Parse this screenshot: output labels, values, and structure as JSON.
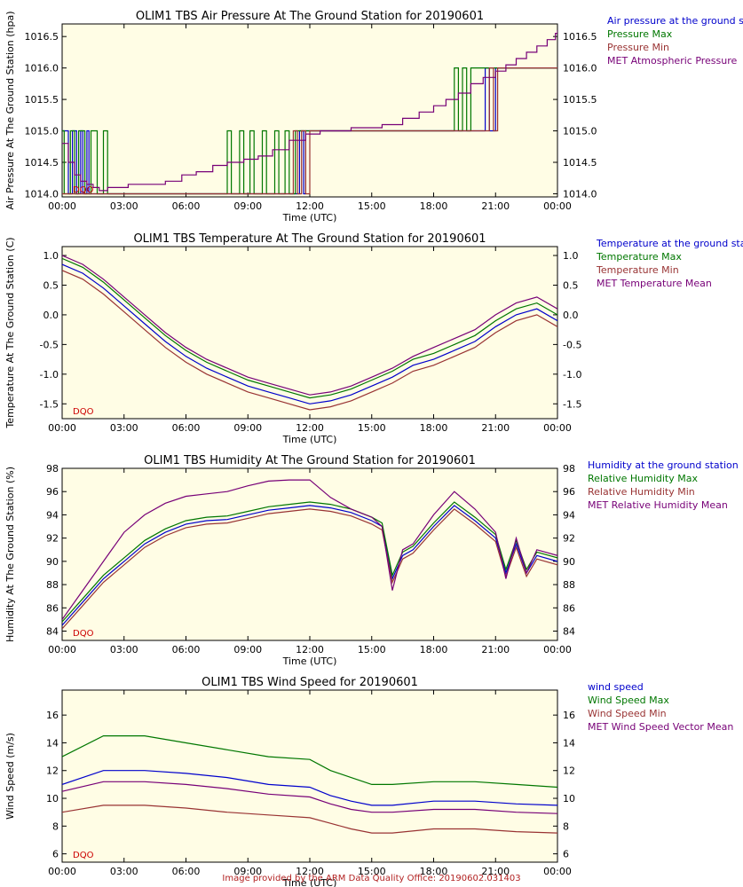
{
  "footer": "Image provided by the ARM Data Quality Office: 20190602.031403",
  "colors": {
    "blue": "#0000cc",
    "green": "#007700",
    "red": "#993333",
    "purple": "#770077",
    "dqo": "#cc0000",
    "bg": "#fffde5"
  },
  "chart_data": [
    {
      "type": "line",
      "title": "OLIM1 TBS Air Pressure At The Ground Station for 20190601",
      "xlabel": "Time (UTC)",
      "ylabel": "Air Pressure At The Ground Station (hpa)",
      "annotation": "DQO",
      "xlim": [
        0,
        24
      ],
      "ylim": [
        1013.95,
        1016.7
      ],
      "xticks": [
        "00:00",
        "03:00",
        "06:00",
        "09:00",
        "12:00",
        "15:00",
        "18:00",
        "21:00",
        "00:00"
      ],
      "yticks": [
        {
          "v": 1014.0,
          "t": "1014.0"
        },
        {
          "v": 1014.5,
          "t": "1014.5"
        },
        {
          "v": 1015.0,
          "t": "1015.0"
        },
        {
          "v": 1015.5,
          "t": "1015.5"
        },
        {
          "v": 1016.0,
          "t": "1016.0"
        },
        {
          "v": 1016.5,
          "t": "1016.5"
        }
      ],
      "series": [
        {
          "name": "Air pressure at the ground sta",
          "color": "#0000cc",
          "step": true,
          "x": [
            0,
            0.3,
            0.5,
            0.7,
            0.9,
            1.0,
            1.2,
            1.3,
            1.5,
            11.5,
            11.7,
            11.8,
            20.2,
            20.5,
            20.7,
            21.0,
            24
          ],
          "y": [
            1015,
            1014,
            1015,
            1014,
            1015,
            1014,
            1015,
            1014,
            1014,
            1015,
            1014,
            1015,
            1015,
            1016,
            1015,
            1016,
            1016
          ]
        },
        {
          "name": "Pressure Max",
          "color": "#007700",
          "step": true,
          "x": [
            0,
            0.1,
            0.4,
            0.6,
            0.8,
            1.1,
            1.4,
            1.7,
            2.0,
            2.2,
            8.0,
            8.2,
            8.6,
            8.8,
            9.1,
            9.3,
            9.7,
            9.9,
            10.3,
            10.5,
            10.8,
            11.0,
            11.3,
            11.6,
            19.0,
            19.2,
            19.4,
            19.6,
            19.8,
            20.0,
            24
          ],
          "y": [
            1015,
            1014,
            1015,
            1014,
            1015,
            1014,
            1015,
            1014,
            1015,
            1014,
            1015,
            1014,
            1015,
            1014,
            1015,
            1014,
            1015,
            1014,
            1015,
            1014,
            1015,
            1014,
            1015,
            1015,
            1016,
            1015,
            1016,
            1015,
            1016,
            1016,
            1016
          ]
        },
        {
          "name": "Pressure Min",
          "color": "#993333",
          "step": true,
          "x": [
            0,
            11.2,
            11.4,
            11.6,
            11.8,
            12.0,
            20.5,
            20.7,
            20.9,
            21.1,
            21.3,
            24
          ],
          "y": [
            1014,
            1015,
            1014,
            1015,
            1014,
            1015,
            1015,
            1016,
            1015,
            1016,
            1016,
            1016
          ]
        },
        {
          "name": "MET Atmospheric Pressure",
          "color": "#770077",
          "step": true,
          "x": [
            0,
            0.3,
            0.6,
            0.9,
            1.2,
            1.5,
            1.8,
            2.2,
            2.7,
            3.2,
            4.0,
            5.0,
            5.8,
            6.5,
            7.3,
            8.0,
            8.8,
            9.5,
            10.2,
            11.0,
            11.8,
            12.5,
            14.0,
            15.5,
            16.5,
            17.3,
            18.0,
            18.6,
            19.2,
            19.8,
            20.4,
            21.0,
            21.5,
            22.0,
            22.5,
            23.0,
            23.5,
            23.9,
            24
          ],
          "y": [
            1014.8,
            1014.5,
            1014.3,
            1014.2,
            1014.15,
            1014.1,
            1014.05,
            1014.1,
            1014.1,
            1014.15,
            1014.15,
            1014.2,
            1014.3,
            1014.35,
            1014.45,
            1014.5,
            1014.55,
            1014.6,
            1014.7,
            1014.85,
            1014.95,
            1015.0,
            1015.05,
            1015.1,
            1015.2,
            1015.3,
            1015.4,
            1015.5,
            1015.6,
            1015.75,
            1015.85,
            1015.95,
            1016.05,
            1016.15,
            1016.25,
            1016.35,
            1016.45,
            1016.55,
            1016.6
          ]
        }
      ]
    },
    {
      "type": "line",
      "title": "OLIM1 TBS Temperature At The Ground Station for 20190601",
      "xlabel": "Time (UTC)",
      "ylabel": "Temperature At The Ground Station (C)",
      "annotation": "DQO",
      "xlim": [
        0,
        24
      ],
      "ylim": [
        -1.75,
        1.15
      ],
      "xticks": [
        "00:00",
        "03:00",
        "06:00",
        "09:00",
        "12:00",
        "15:00",
        "18:00",
        "21:00",
        "00:00"
      ],
      "yticks": [
        {
          "v": -1.5,
          "t": "-1.5"
        },
        {
          "v": -1.0,
          "t": "-1.0"
        },
        {
          "v": -0.5,
          "t": "-0.5"
        },
        {
          "v": 0.0,
          "t": "0.0"
        },
        {
          "v": 0.5,
          "t": "0.5"
        },
        {
          "v": 1.0,
          "t": "1.0"
        }
      ],
      "series": [
        {
          "name": "Temperature at the ground stati",
          "color": "#0000cc",
          "x": [
            0,
            1,
            2,
            3,
            4,
            5,
            6,
            7,
            8,
            9,
            10,
            11,
            12,
            13,
            14,
            15,
            16,
            17,
            18,
            19,
            20,
            21,
            22,
            23,
            24
          ],
          "y": [
            0.85,
            0.7,
            0.45,
            0.15,
            -0.15,
            -0.45,
            -0.7,
            -0.9,
            -1.05,
            -1.2,
            -1.3,
            -1.4,
            -1.5,
            -1.45,
            -1.35,
            -1.2,
            -1.05,
            -0.85,
            -0.75,
            -0.6,
            -0.45,
            -0.2,
            0.0,
            0.1,
            -0.1
          ]
        },
        {
          "name": "Temperature Max",
          "color": "#007700",
          "x": [
            0,
            1,
            2,
            3,
            4,
            5,
            6,
            7,
            8,
            9,
            10,
            11,
            12,
            13,
            14,
            15,
            16,
            17,
            18,
            19,
            20,
            21,
            22,
            23,
            24
          ],
          "y": [
            0.95,
            0.8,
            0.55,
            0.25,
            -0.05,
            -0.35,
            -0.6,
            -0.8,
            -0.95,
            -1.1,
            -1.2,
            -1.3,
            -1.4,
            -1.35,
            -1.25,
            -1.1,
            -0.95,
            -0.75,
            -0.65,
            -0.5,
            -0.35,
            -0.1,
            0.1,
            0.2,
            0.0
          ]
        },
        {
          "name": "Temperature Min",
          "color": "#993333",
          "x": [
            0,
            1,
            2,
            3,
            4,
            5,
            6,
            7,
            8,
            9,
            10,
            11,
            12,
            13,
            14,
            15,
            16,
            17,
            18,
            19,
            20,
            21,
            22,
            23,
            24
          ],
          "y": [
            0.75,
            0.6,
            0.35,
            0.05,
            -0.25,
            -0.55,
            -0.8,
            -1.0,
            -1.15,
            -1.3,
            -1.4,
            -1.5,
            -1.6,
            -1.55,
            -1.45,
            -1.3,
            -1.15,
            -0.95,
            -0.85,
            -0.7,
            -0.55,
            -0.3,
            -0.1,
            0.0,
            -0.2
          ]
        },
        {
          "name": "MET Temperature Mean",
          "color": "#770077",
          "x": [
            0,
            1,
            2,
            3,
            4,
            5,
            6,
            7,
            8,
            9,
            10,
            11,
            12,
            13,
            14,
            15,
            16,
            17,
            18,
            19,
            20,
            21,
            22,
            23,
            24
          ],
          "y": [
            1.0,
            0.85,
            0.6,
            0.3,
            0.0,
            -0.3,
            -0.55,
            -0.75,
            -0.9,
            -1.05,
            -1.15,
            -1.25,
            -1.35,
            -1.3,
            -1.2,
            -1.05,
            -0.9,
            -0.7,
            -0.55,
            -0.4,
            -0.25,
            0.0,
            0.2,
            0.3,
            0.1
          ]
        }
      ]
    },
    {
      "type": "line",
      "title": "OLIM1 TBS Humidity At The Ground Station for 20190601",
      "xlabel": "Time (UTC)",
      "ylabel": "Humidity At The Ground Station (%)",
      "annotation": "DQO",
      "xlim": [
        0,
        24
      ],
      "ylim": [
        83.2,
        98.0
      ],
      "xticks": [
        "00:00",
        "03:00",
        "06:00",
        "09:00",
        "12:00",
        "15:00",
        "18:00",
        "21:00",
        "00:00"
      ],
      "yticks": [
        {
          "v": 84,
          "t": "84"
        },
        {
          "v": 86,
          "t": "86"
        },
        {
          "v": 88,
          "t": "88"
        },
        {
          "v": 90,
          "t": "90"
        },
        {
          "v": 92,
          "t": "92"
        },
        {
          "v": 94,
          "t": "94"
        },
        {
          "v": 96,
          "t": "96"
        },
        {
          "v": 98,
          "t": "98"
        }
      ],
      "series": [
        {
          "name": "Humidity at the ground station",
          "color": "#0000cc",
          "x": [
            0,
            1,
            2,
            3,
            4,
            5,
            6,
            7,
            8,
            9,
            10,
            11,
            12,
            13,
            14,
            15,
            15.5,
            16,
            16.5,
            17,
            18,
            19,
            20,
            21,
            21.5,
            22,
            22.5,
            23,
            24
          ],
          "y": [
            84.5,
            86.5,
            88.5,
            90.0,
            91.5,
            92.5,
            93.2,
            93.5,
            93.6,
            94.0,
            94.4,
            94.6,
            94.8,
            94.6,
            94.2,
            93.5,
            93.0,
            88.5,
            90.5,
            91.0,
            93.0,
            94.8,
            93.5,
            92.0,
            89.0,
            91.5,
            89.0,
            90.5,
            90.0
          ]
        },
        {
          "name": "Relative Humidity Max",
          "color": "#007700",
          "x": [
            0,
            1,
            2,
            3,
            4,
            5,
            6,
            7,
            8,
            9,
            10,
            11,
            12,
            13,
            14,
            15,
            15.5,
            16,
            16.5,
            17,
            18,
            19,
            20,
            21,
            21.5,
            22,
            22.5,
            23,
            24
          ],
          "y": [
            84.8,
            86.8,
            88.8,
            90.3,
            91.8,
            92.8,
            93.5,
            93.8,
            93.9,
            94.3,
            94.7,
            94.9,
            95.1,
            94.9,
            94.5,
            93.8,
            93.3,
            88.8,
            90.8,
            91.3,
            93.3,
            95.1,
            93.8,
            92.3,
            89.3,
            91.8,
            89.3,
            90.8,
            90.3
          ]
        },
        {
          "name": "Relative Humidity Min",
          "color": "#993333",
          "x": [
            0,
            1,
            2,
            3,
            4,
            5,
            6,
            7,
            8,
            9,
            10,
            11,
            12,
            13,
            14,
            15,
            15.5,
            16,
            16.5,
            17,
            18,
            19,
            20,
            21,
            21.5,
            22,
            22.5,
            23,
            24
          ],
          "y": [
            84.2,
            86.2,
            88.2,
            89.7,
            91.2,
            92.2,
            92.9,
            93.2,
            93.3,
            93.7,
            94.1,
            94.3,
            94.5,
            94.3,
            93.9,
            93.2,
            92.7,
            88.2,
            90.2,
            90.7,
            92.7,
            94.5,
            93.2,
            91.7,
            88.7,
            91.2,
            88.7,
            90.2,
            89.7
          ]
        },
        {
          "name": "MET Relative Humidity Mean",
          "color": "#770077",
          "x": [
            0,
            1,
            2,
            3,
            4,
            5,
            6,
            7,
            8,
            9,
            10,
            11,
            12,
            13,
            14,
            15,
            15.5,
            16,
            16.5,
            17,
            18,
            19,
            20,
            21,
            21.5,
            22,
            22.5,
            23,
            24
          ],
          "y": [
            85.0,
            87.5,
            90.0,
            92.5,
            94.0,
            95.0,
            95.6,
            95.8,
            96.0,
            96.5,
            96.9,
            97.0,
            97.0,
            95.5,
            94.5,
            93.8,
            93.0,
            87.5,
            91.0,
            91.5,
            94.0,
            96.0,
            94.5,
            92.5,
            88.5,
            92.0,
            89.0,
            91.0,
            90.5
          ]
        }
      ]
    },
    {
      "type": "line",
      "title": "OLIM1 TBS Wind Speed for 20190601",
      "xlabel": "Time (UTC)",
      "ylabel": "Wind Speed (m/s)",
      "annotation": "DQO",
      "xlim": [
        0,
        24
      ],
      "ylim": [
        5.4,
        17.8
      ],
      "xticks": [
        "00:00",
        "03:00",
        "06:00",
        "09:00",
        "12:00",
        "15:00",
        "18:00",
        "21:00",
        "00:00"
      ],
      "yticks": [
        {
          "v": 6,
          "t": "6"
        },
        {
          "v": 8,
          "t": "8"
        },
        {
          "v": 10,
          "t": "10"
        },
        {
          "v": 12,
          "t": "12"
        },
        {
          "v": 14,
          "t": "14"
        },
        {
          "v": 16,
          "t": "16"
        }
      ],
      "series": [
        {
          "name": "wind speed",
          "color": "#0000cc",
          "x": [
            0,
            2,
            4,
            6,
            8,
            10,
            12,
            13,
            14,
            15,
            16,
            18,
            20,
            22,
            24
          ],
          "y": [
            11.0,
            12.0,
            12.0,
            11.8,
            11.5,
            11.0,
            10.8,
            10.2,
            9.8,
            9.5,
            9.5,
            9.8,
            9.8,
            9.6,
            9.5
          ]
        },
        {
          "name": "Wind Speed Max",
          "color": "#007700",
          "x": [
            0,
            2,
            4,
            6,
            8,
            10,
            12,
            13,
            14,
            15,
            16,
            18,
            20,
            22,
            24
          ],
          "y": [
            13.0,
            14.5,
            14.5,
            14.0,
            13.5,
            13.0,
            12.8,
            12.0,
            11.5,
            11.0,
            11.0,
            11.2,
            11.2,
            11.0,
            10.8
          ]
        },
        {
          "name": "Wind Speed Min",
          "color": "#993333",
          "x": [
            0,
            2,
            4,
            6,
            8,
            10,
            12,
            13,
            14,
            15,
            16,
            18,
            20,
            22,
            24
          ],
          "y": [
            9.0,
            9.5,
            9.5,
            9.3,
            9.0,
            8.8,
            8.6,
            8.2,
            7.8,
            7.5,
            7.5,
            7.8,
            7.8,
            7.6,
            7.5
          ]
        },
        {
          "name": "MET Wind Speed Vector Mean",
          "color": "#770077",
          "x": [
            0,
            2,
            4,
            6,
            8,
            10,
            12,
            13,
            14,
            15,
            16,
            18,
            20,
            22,
            24
          ],
          "y": [
            10.5,
            11.2,
            11.2,
            11.0,
            10.7,
            10.3,
            10.1,
            9.6,
            9.2,
            9.0,
            9.0,
            9.2,
            9.2,
            9.0,
            8.9
          ]
        }
      ]
    }
  ]
}
